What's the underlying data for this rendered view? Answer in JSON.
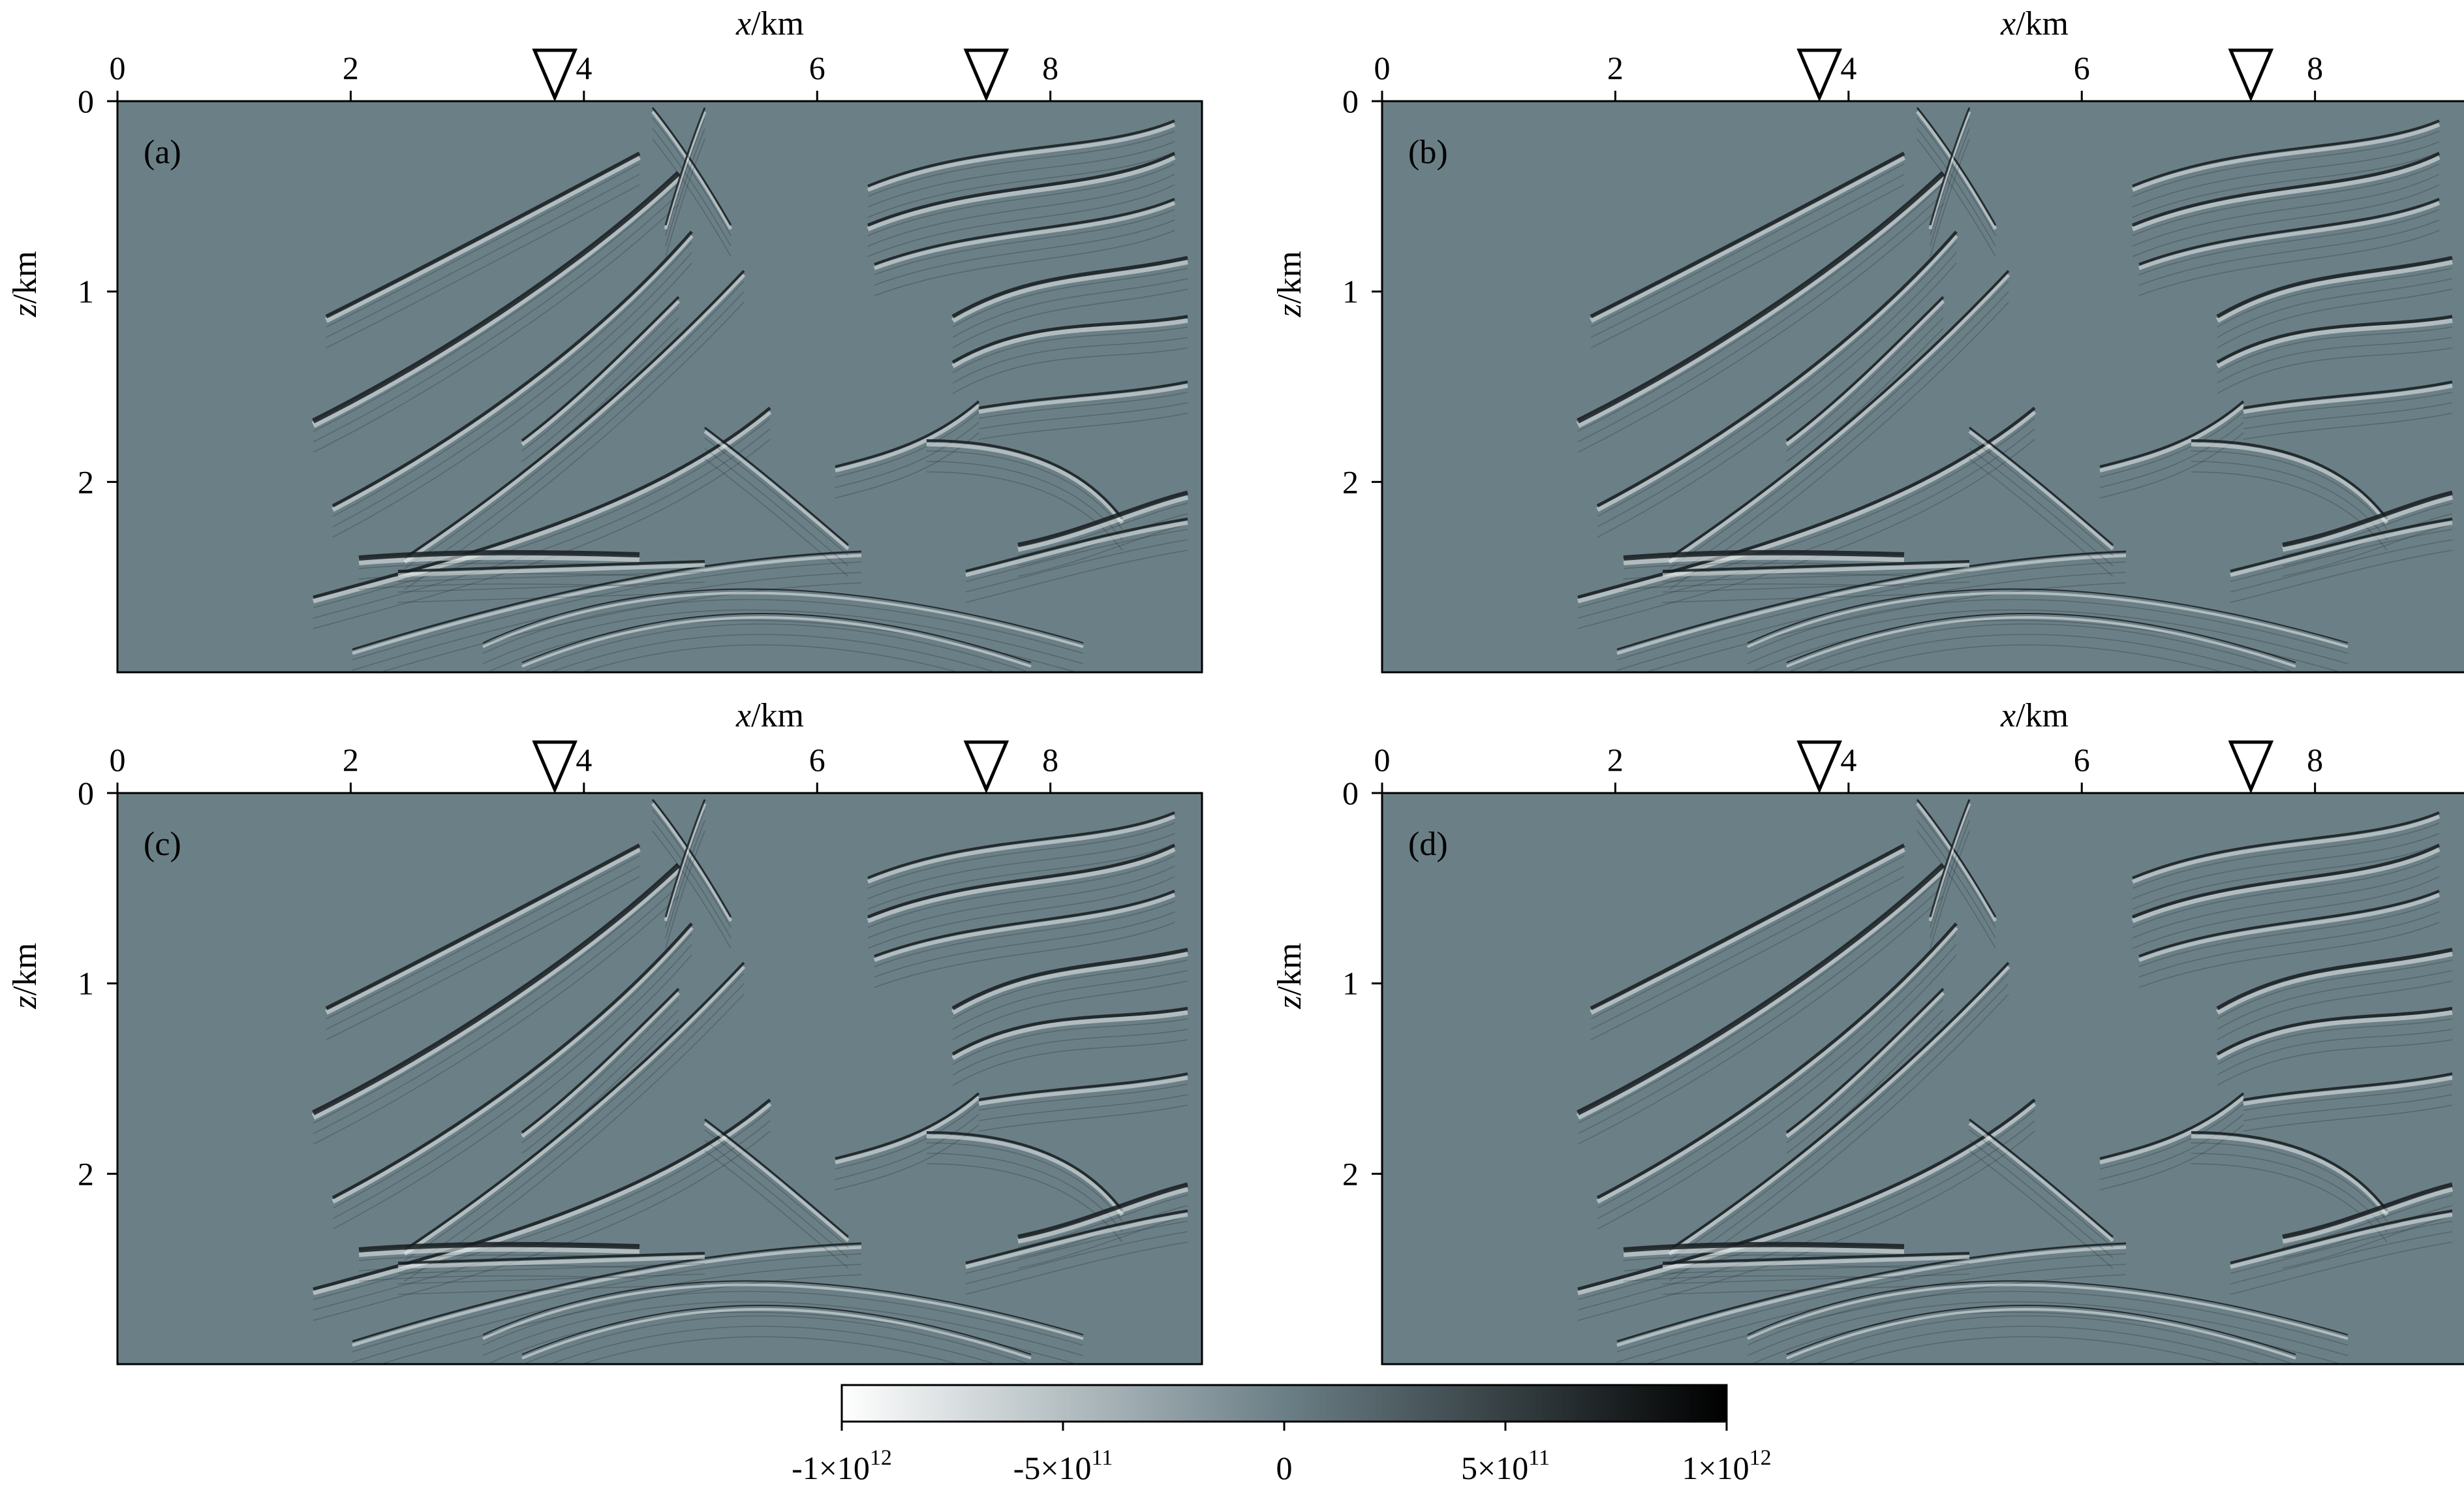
{
  "axis_titles": {
    "x": {
      "italic": "x",
      "unit": "/km"
    },
    "z": {
      "italic": "z",
      "unit": "/km"
    }
  },
  "x_ticks": [
    "0",
    "2",
    "4",
    "6",
    "8"
  ],
  "z_ticks": [
    "0",
    "1",
    "2"
  ],
  "panels": [
    {
      "label": "(a)"
    },
    {
      "label": "(b)"
    },
    {
      "label": "(c)"
    },
    {
      "label": "(d)"
    }
  ],
  "markers": {
    "symbol": "inverted-triangle",
    "x_km": [
      3.75,
      7.45
    ]
  },
  "colorbar": {
    "colors": [
      "#ffffff",
      "#6b7f86",
      "#000000"
    ],
    "labels": [
      "-1×10^12",
      "-5×10^11",
      "0",
      "5×10^11",
      "1×10^12"
    ]
  },
  "colors": {
    "background_gray": "#6b7f86",
    "reflector_dark": "#161c1f",
    "reflector_light": "#e9efef"
  }
}
